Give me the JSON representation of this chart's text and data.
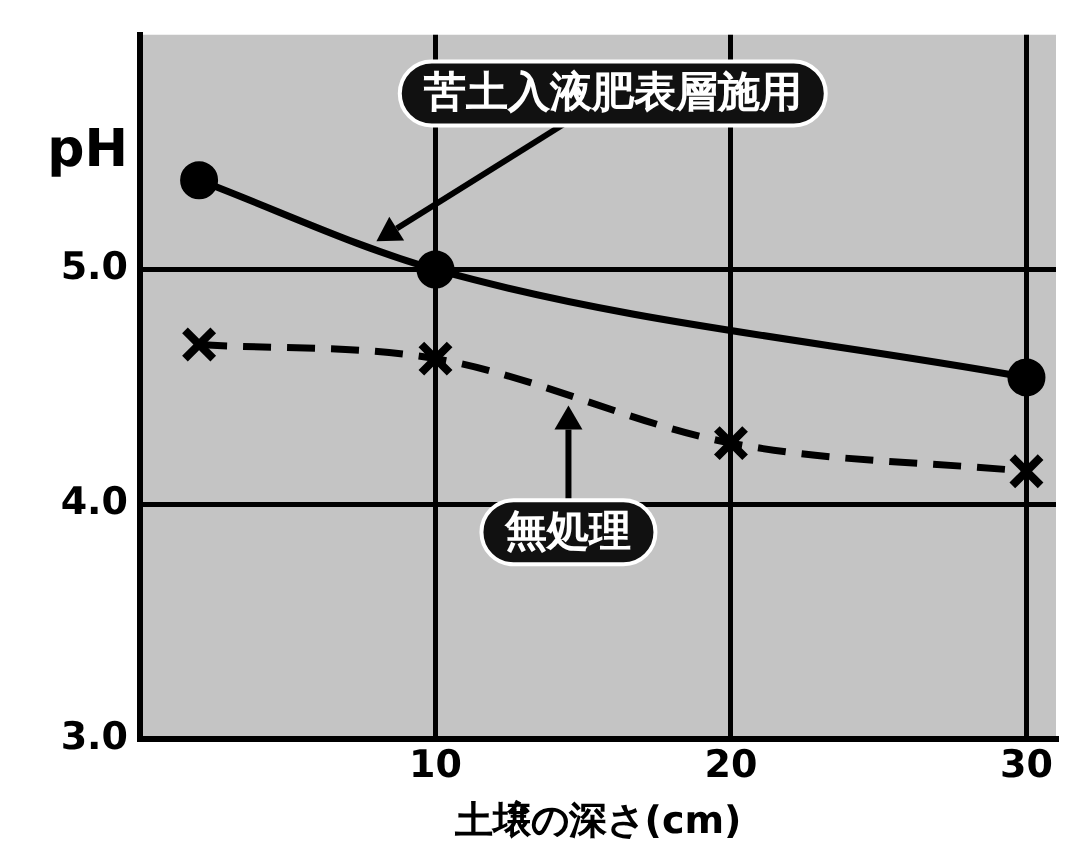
{
  "chart_data": {
    "type": "line",
    "xlabel": "土壌の深さ(cm)",
    "ylabel": "pH",
    "xlim": [
      0,
      31
    ],
    "ylim": [
      3,
      6
    ],
    "xticks": [
      10,
      20,
      30
    ],
    "yticks": [
      {
        "value": 3,
        "label": "3.0"
      },
      {
        "value": 4,
        "label": "4.0"
      },
      {
        "value": 5,
        "label": "5.0"
      }
    ],
    "grid": true,
    "series": [
      {
        "name": "苦土入液肥表層施用",
        "color": "#000000",
        "x": [
          2,
          10,
          30
        ],
        "values": [
          5.38,
          5.0,
          4.54
        ],
        "marker": "circle",
        "line_style": "solid"
      },
      {
        "name": "無処理",
        "color": "#000000",
        "x": [
          2,
          10,
          20,
          30
        ],
        "values": [
          4.68,
          4.62,
          4.26,
          4.14
        ],
        "marker": "cross",
        "line_style": "dashed"
      }
    ]
  }
}
